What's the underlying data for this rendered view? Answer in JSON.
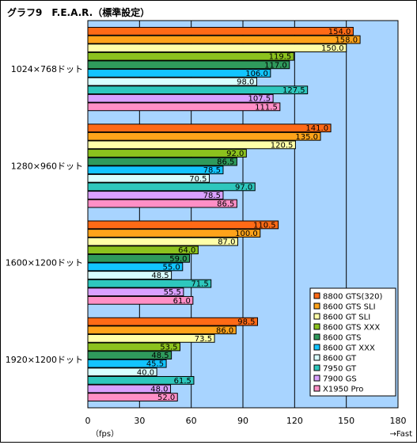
{
  "chart_data": {
    "type": "bar",
    "orientation": "horizontal",
    "title": "グラフ9　F.E.A.R.（標準設定）",
    "xlabel": "（fps）",
    "x_direction_label": "→Fast",
    "xlim": [
      0,
      180
    ],
    "x_ticks": [
      0,
      30,
      60,
      90,
      120,
      150,
      180
    ],
    "grid": "vertical",
    "legend_position": "bottom-right",
    "categories": [
      "1024×768ドット",
      "1280×960ドット",
      "1600×1200ドット",
      "1920×1200ドット"
    ],
    "series": [
      {
        "name": "8800 GTS(320)",
        "color": "#ff6a16",
        "values": [
          154.0,
          141.0,
          110.5,
          98.5
        ]
      },
      {
        "name": "8600 GTS SLI",
        "color": "#ffa31a",
        "values": [
          158.0,
          135.0,
          100.0,
          86.0
        ]
      },
      {
        "name": "8600 GT SLI",
        "color": "#ffffa8",
        "values": [
          150.0,
          120.5,
          87.0,
          73.5
        ]
      },
      {
        "name": "8600 GTS XXX",
        "color": "#8cc21e",
        "values": [
          119.5,
          92.0,
          64.0,
          53.5
        ]
      },
      {
        "name": "8600 GTS",
        "color": "#2f9a5c",
        "values": [
          117.0,
          86.5,
          59.0,
          48.5
        ]
      },
      {
        "name": "8600 GT XXX",
        "color": "#12c4ff",
        "values": [
          106.0,
          78.5,
          55.0,
          45.5
        ]
      },
      {
        "name": "8600 GT",
        "color": "#d8ffff",
        "values": [
          98.0,
          70.5,
          48.5,
          40.0
        ]
      },
      {
        "name": "7950 GT",
        "color": "#2ec7bd",
        "values": [
          127.5,
          97.0,
          71.5,
          61.5
        ]
      },
      {
        "name": "7900 GS",
        "color": "#d9a0ff",
        "values": [
          107.5,
          78.5,
          55.5,
          48.0
        ]
      },
      {
        "name": "X1950 Pro",
        "color": "#ff8fc6",
        "values": [
          111.5,
          86.5,
          61.0,
          52.0
        ]
      }
    ],
    "colors": {
      "plot_background": "#a8d4ff",
      "gridline": "#000000"
    }
  }
}
